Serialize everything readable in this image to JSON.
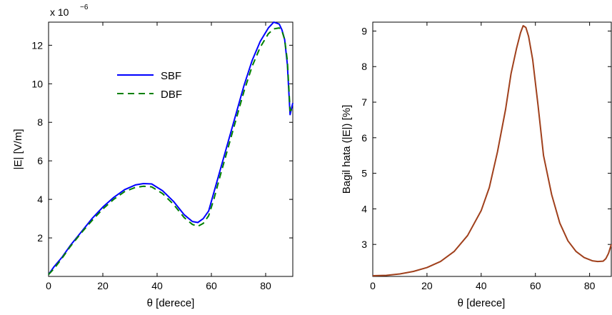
{
  "chart_data": [
    {
      "type": "line",
      "xlabel": "θ [derece]",
      "ylabel": "|E| [V/m]",
      "y_multiplier_label": "x 10",
      "y_multiplier_exponent": "−6",
      "xlim": [
        0,
        90
      ],
      "ylim": [
        0,
        13.2
      ],
      "xticks": [
        0,
        20,
        40,
        60,
        80
      ],
      "yticks": [
        2,
        4,
        6,
        8,
        10,
        12
      ],
      "grid": false,
      "legend_position": "upper-middle",
      "series": [
        {
          "name": "SBF",
          "color": "#0000ff",
          "dash": "solid",
          "x": [
            0,
            2,
            5,
            8,
            12,
            16,
            20,
            24,
            28,
            32,
            35,
            38,
            42,
            46,
            50,
            53,
            55,
            57,
            59,
            61,
            63,
            66,
            69,
            72,
            75,
            78,
            81,
            83,
            85,
            86,
            87,
            88,
            89,
            90
          ],
          "y": [
            0.1,
            0.5,
            1.0,
            1.6,
            2.3,
            3.0,
            3.6,
            4.1,
            4.5,
            4.75,
            4.82,
            4.8,
            4.45,
            3.9,
            3.2,
            2.85,
            2.8,
            3.0,
            3.4,
            4.4,
            5.4,
            6.9,
            8.4,
            9.9,
            11.2,
            12.2,
            12.9,
            13.2,
            13.1,
            12.8,
            12.3,
            11.0,
            8.4,
            9.0
          ]
        },
        {
          "name": "DBF",
          "color": "#008000",
          "dash": "dashed",
          "x": [
            0,
            2,
            5,
            8,
            12,
            16,
            20,
            24,
            28,
            32,
            35,
            38,
            42,
            46,
            50,
            53,
            55,
            57,
            59,
            61,
            63,
            66,
            69,
            72,
            75,
            78,
            81,
            83,
            85,
            86,
            87,
            88,
            89,
            90
          ],
          "y": [
            0.1,
            0.4,
            0.95,
            1.55,
            2.25,
            2.9,
            3.5,
            4.0,
            4.4,
            4.62,
            4.68,
            4.65,
            4.3,
            3.75,
            3.05,
            2.7,
            2.6,
            2.75,
            3.15,
            4.05,
            5.1,
            6.6,
            8.1,
            9.6,
            10.9,
            11.9,
            12.6,
            12.85,
            12.9,
            12.75,
            12.3,
            11.2,
            8.6,
            8.7
          ]
        }
      ]
    },
    {
      "type": "line",
      "xlabel": "θ [derece]",
      "ylabel": "Bagil hata (|E|) [%]",
      "xlim": [
        0,
        88
      ],
      "ylim": [
        2.1,
        9.25
      ],
      "xticks": [
        0,
        20,
        40,
        60,
        80
      ],
      "yticks": [
        3,
        4,
        5,
        6,
        7,
        8,
        9
      ],
      "grid": false,
      "series": [
        {
          "color": "#a0401c",
          "dash": "solid",
          "x": [
            0,
            5,
            10,
            15,
            20,
            25,
            30,
            35,
            40,
            43,
            46,
            49,
            51,
            53,
            54.5,
            55.5,
            56.5,
            57.5,
            59,
            61,
            63,
            66,
            69,
            72,
            75,
            78,
            81,
            83,
            85,
            86,
            87,
            88
          ],
          "y": [
            2.12,
            2.13,
            2.17,
            2.24,
            2.35,
            2.52,
            2.8,
            3.25,
            3.95,
            4.6,
            5.6,
            6.8,
            7.8,
            8.5,
            8.95,
            9.15,
            9.1,
            8.85,
            8.2,
            6.9,
            5.5,
            4.4,
            3.6,
            3.1,
            2.8,
            2.63,
            2.54,
            2.52,
            2.53,
            2.6,
            2.75,
            3.0
          ]
        }
      ]
    }
  ]
}
